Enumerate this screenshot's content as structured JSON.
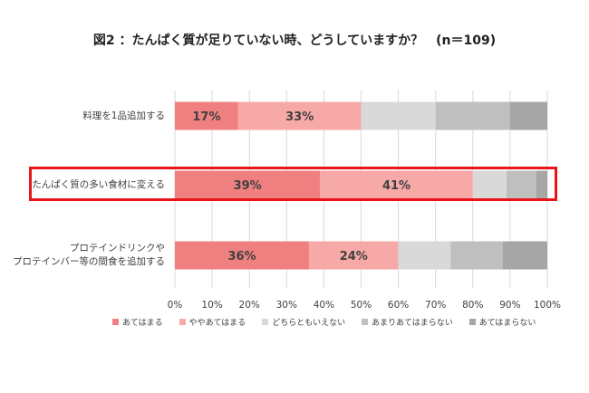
{
  "title": "図2 ：たんぱく質が足りていない時、どうしていますか？　(n＝109)",
  "chart_data": {
    "type": "bar",
    "orientation": "horizontal-stacked-100",
    "categories": [
      "料理を1品追加する",
      "たんぱく質の多い食材に変える",
      "プロテインドリンクや\nプロテインバー等の間食を追加する"
    ],
    "series": [
      {
        "name": "あてはまる",
        "values": [
          17,
          39,
          36
        ],
        "color": "#f08080",
        "labels": [
          "17%",
          "39%",
          "36%"
        ]
      },
      {
        "name": "ややあてはまる",
        "values": [
          33,
          41,
          24
        ],
        "color": "#f7a9a8",
        "labels": [
          "33%",
          "41%",
          "24%"
        ]
      },
      {
        "name": "どちらともいえない",
        "values": [
          20,
          9,
          14
        ],
        "color": "#d9d9d9",
        "labels": [
          "",
          "",
          ""
        ]
      },
      {
        "name": "あまりあてはまらない",
        "values": [
          20,
          8,
          14
        ],
        "color": "#bfbfbf",
        "labels": [
          "",
          "",
          ""
        ]
      },
      {
        "name": "あてはまらない",
        "values": [
          10,
          3,
          12
        ],
        "color": "#a6a6a6",
        "labels": [
          "",
          "",
          ""
        ]
      }
    ],
    "xlim": [
      0,
      100
    ],
    "xticks": [
      "0%",
      "10%",
      "20%",
      "30%",
      "40%",
      "50%",
      "60%",
      "70%",
      "80%",
      "90%",
      "100%"
    ],
    "highlighted_category": "たんぱく質の多い食材に変える",
    "highlight_color": "#e8151b",
    "legend_position": "bottom"
  }
}
